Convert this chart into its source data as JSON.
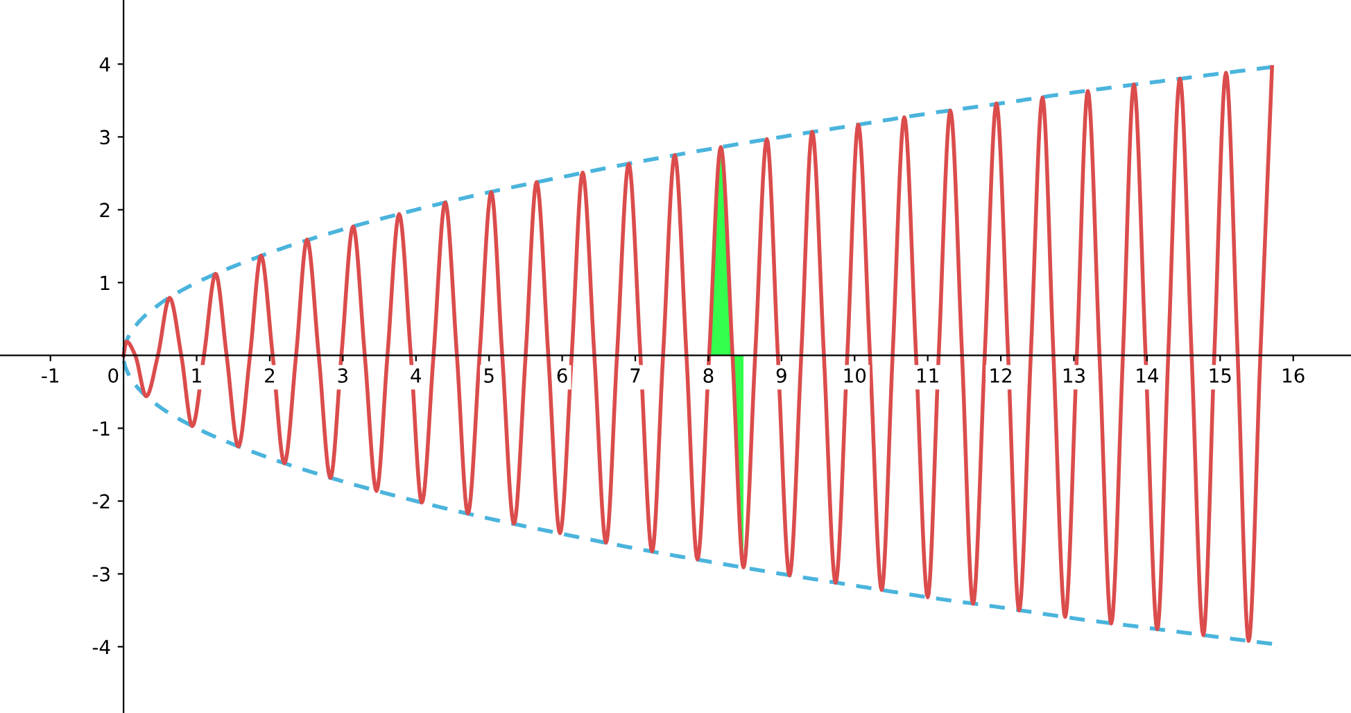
{
  "chart_data": {
    "type": "line",
    "xlim": [
      -1.69,
      16.79
    ],
    "ylim": [
      -4.91,
      4.88
    ],
    "xticks": [
      -1,
      0,
      1,
      2,
      3,
      4,
      5,
      6,
      7,
      8,
      9,
      10,
      11,
      12,
      13,
      14,
      15,
      16
    ],
    "yticks": [
      -4,
      -3,
      -2,
      -1,
      1,
      2,
      3,
      4
    ],
    "grid": false,
    "legend": false,
    "marker": "none",
    "series": [
      {
        "type": "area",
        "color": "#33ff4c",
        "x": [
          8.01,
          8.09,
          8.17,
          8.25,
          8.33,
          8.4,
          8.48
        ],
        "values": [
          0,
          2.01,
          2.86,
          1.96,
          0,
          -1.97,
          -2.91
        ]
      },
      {
        "color": "#4ab4dc",
        "line_style": "dashed",
        "x": [
          15.71,
          15,
          14,
          13,
          12,
          11,
          10,
          9,
          8,
          7,
          6,
          5,
          4,
          3,
          2,
          1,
          0.5,
          0.2,
          0.05,
          0.01,
          0,
          0.01,
          0.05,
          0.2,
          0.5,
          1,
          2,
          3,
          4,
          5,
          6,
          7,
          8,
          9,
          10,
          11,
          12,
          13,
          14,
          15,
          15.71
        ],
        "values": [
          -3.96,
          -3.87,
          -3.74,
          -3.61,
          -3.46,
          -3.32,
          -3.16,
          -3,
          -2.83,
          -2.65,
          -2.45,
          -2.24,
          -2,
          -1.73,
          -1.41,
          -1,
          -0.71,
          -0.45,
          -0.22,
          -0.1,
          0,
          0.1,
          0.22,
          0.45,
          0.71,
          1,
          1.41,
          1.73,
          2,
          2.24,
          2.45,
          2.65,
          2.83,
          3,
          3.16,
          3.32,
          3.46,
          3.61,
          3.74,
          3.87,
          3.96
        ]
      },
      {
        "color": "#db4c4c",
        "line_style": "solid",
        "x": [
          0,
          0.04,
          0.16,
          0.31,
          0.47,
          0.63,
          0.79,
          0.94,
          1.1,
          1.26,
          1.41,
          1.57,
          1.73,
          1.88,
          2.04,
          2.2,
          2.36,
          2.51,
          2.67,
          2.83,
          2.98,
          3.14,
          3.3,
          3.46,
          3.61,
          3.77,
          3.93,
          4.08,
          4.24,
          4.4,
          4.56,
          4.71,
          4.87,
          5.03,
          5.18,
          5.34,
          5.5,
          5.65,
          5.81,
          5.97,
          6.13,
          6.28,
          6.44,
          6.6,
          6.75,
          6.91,
          7.07,
          7.23,
          7.38,
          7.54,
          7.7,
          7.85,
          8.01,
          8.17,
          8.33,
          8.48,
          8.64,
          8.8,
          8.95,
          9.11,
          9.27,
          9.42,
          9.58,
          9.74,
          9.9,
          10.05,
          10.21,
          10.37,
          10.52,
          10.68,
          10.84,
          11.0,
          11.15,
          11.31,
          11.47,
          11.62,
          11.78,
          11.94,
          12.1,
          12.25,
          12.41,
          12.57,
          12.72,
          12.88,
          13.04,
          13.19,
          13.35,
          13.51,
          13.67,
          13.82,
          13.98,
          14.14,
          14.29,
          14.45,
          14.61,
          14.77,
          14.92,
          15.08,
          15.24,
          15.39,
          15.55,
          15.71
        ],
        "values": [
          0,
          0.19,
          0,
          -0.56,
          0,
          0.79,
          0,
          -0.97,
          0,
          1.12,
          0,
          -1.25,
          0,
          1.37,
          0,
          -1.48,
          0,
          1.59,
          0,
          -1.68,
          0,
          1.77,
          0,
          -1.86,
          0,
          1.94,
          0,
          -2.02,
          0,
          2.1,
          0,
          -2.17,
          0,
          2.24,
          0,
          -2.31,
          0,
          2.38,
          0,
          -2.44,
          0,
          2.51,
          0,
          -2.57,
          0,
          2.63,
          0,
          -2.69,
          0,
          2.75,
          0,
          -2.8,
          0,
          2.86,
          0,
          -2.91,
          0,
          2.97,
          0,
          -3.02,
          0,
          3.07,
          0,
          -3.12,
          0,
          3.17,
          0,
          -3.22,
          0,
          3.27,
          0,
          -3.32,
          0,
          3.36,
          0,
          -3.41,
          0,
          3.46,
          0,
          -3.5,
          0,
          3.54,
          0,
          -3.59,
          0,
          3.63,
          0,
          -3.68,
          0,
          3.72,
          0,
          -3.76,
          0,
          3.8,
          0,
          -3.84,
          0,
          3.88,
          0,
          -3.92,
          0,
          3.96
        ]
      }
    ]
  }
}
